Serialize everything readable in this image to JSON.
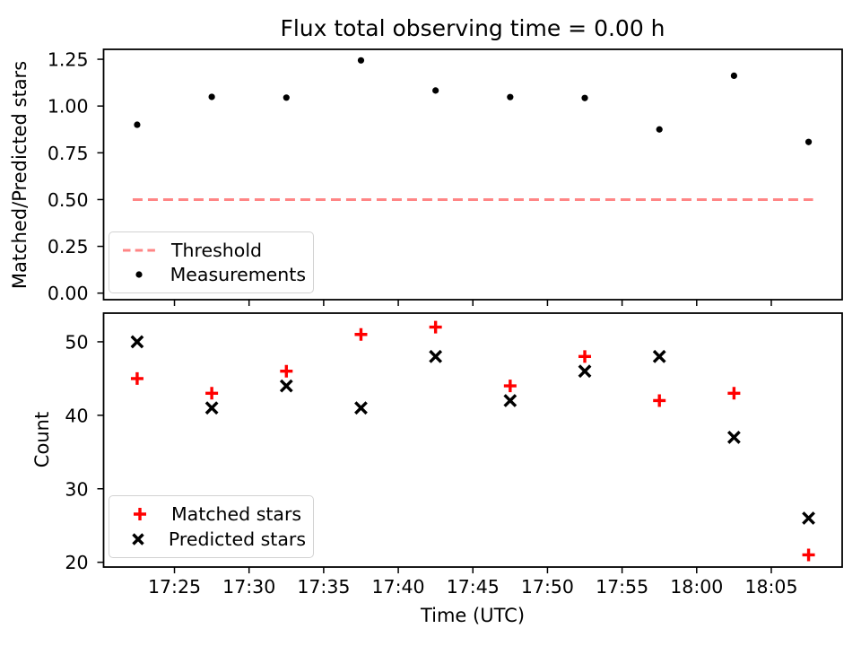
{
  "chart_data": [
    {
      "type": "scatter",
      "panel": "top",
      "title": "Flux total observing time = 0.00 h",
      "ylabel": "Matched/Predicted stars",
      "x_minutes": [
        22.5,
        27.5,
        32.5,
        37.5,
        42.5,
        47.5,
        52.5,
        57.5,
        62.5,
        67.5
      ],
      "series": [
        {
          "name": "Threshold",
          "style": "dashed-line",
          "color": "#ff8585",
          "y": 0.5,
          "x_span_minutes": [
            22.2,
            67.8
          ]
        },
        {
          "name": "Measurements",
          "style": "dot",
          "color": "#000000",
          "values": [
            0.9,
            1.049,
            1.045,
            1.244,
            1.083,
            1.048,
            1.043,
            0.875,
            1.162,
            0.808
          ]
        }
      ],
      "xlim_minutes": [
        20.25,
        69.75
      ],
      "ylim": [
        -0.035,
        1.303
      ],
      "yticks": {
        "values": [
          0.0,
          0.25,
          0.5,
          0.75,
          1.0,
          1.25
        ],
        "labels": [
          "0.00",
          "0.25",
          "0.50",
          "0.75",
          "1.00",
          "1.25"
        ]
      },
      "legend": {
        "position": "lower left",
        "entries": [
          "Threshold",
          "Measurements"
        ]
      },
      "grid": false
    },
    {
      "type": "scatter",
      "panel": "bottom",
      "ylabel": "Count",
      "xlabel": "Time (UTC)",
      "x_minutes": [
        22.5,
        27.5,
        32.5,
        37.5,
        42.5,
        47.5,
        52.5,
        57.5,
        62.5,
        67.5
      ],
      "series": [
        {
          "name": "Matched stars",
          "style": "plus",
          "color": "#ff0000",
          "values": [
            45,
            43,
            46,
            51,
            52,
            44,
            48,
            42,
            43,
            21
          ]
        },
        {
          "name": "Predicted stars",
          "style": "x",
          "color": "#000000",
          "values": [
            50,
            41,
            44,
            41,
            48,
            42,
            46,
            48,
            37,
            26
          ]
        }
      ],
      "xlim_minutes": [
        20.25,
        69.75
      ],
      "ylim": [
        19.35,
        53.9
      ],
      "yticks": {
        "values": [
          20,
          30,
          40,
          50
        ],
        "labels": [
          "20",
          "30",
          "40",
          "50"
        ]
      },
      "xticks": {
        "minutes": [
          25,
          30,
          35,
          40,
          45,
          50,
          55,
          60,
          65
        ],
        "labels": [
          "17:25",
          "17:30",
          "17:35",
          "17:40",
          "17:45",
          "17:50",
          "17:55",
          "18:00",
          "18:05"
        ]
      },
      "legend": {
        "position": "lower left",
        "entries": [
          "Matched stars",
          "Predicted stars"
        ]
      },
      "grid": false
    }
  ]
}
